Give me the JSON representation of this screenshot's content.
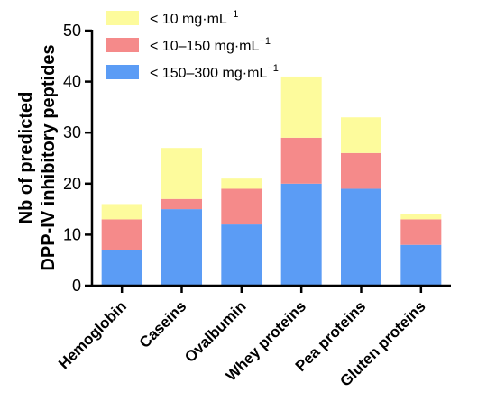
{
  "chart_data": {
    "type": "bar",
    "stacked": true,
    "title": "",
    "xlabel": "",
    "ylabel_lines": [
      "Nb of predicted",
      "DPP-IV inhibitory peptides"
    ],
    "ylim": [
      0,
      50
    ],
    "yticks": [
      0,
      10,
      20,
      30,
      40,
      50
    ],
    "grid": false,
    "legend_position": "top-left",
    "categories": [
      "Hemoglobin",
      "Caseins",
      "Ovalbumin",
      "Whey proteins",
      "Pea proteins",
      "Gluten proteins"
    ],
    "series": [
      {
        "name": "< 150–300 mg·mL",
        "sup": "−1",
        "color": "#5b9cf5",
        "values": [
          7,
          15,
          12,
          20,
          19,
          8
        ]
      },
      {
        "name": "< 10–150 mg·mL",
        "sup": "−1",
        "color": "#f58a8a",
        "values": [
          6,
          2,
          7,
          9,
          7,
          5
        ]
      },
      {
        "name": "< 10 mg·mL",
        "sup": "−1",
        "color": "#fdfb9c",
        "values": [
          3,
          10,
          2,
          12,
          7,
          1
        ]
      }
    ],
    "legend_order": [
      2,
      1,
      0
    ]
  }
}
